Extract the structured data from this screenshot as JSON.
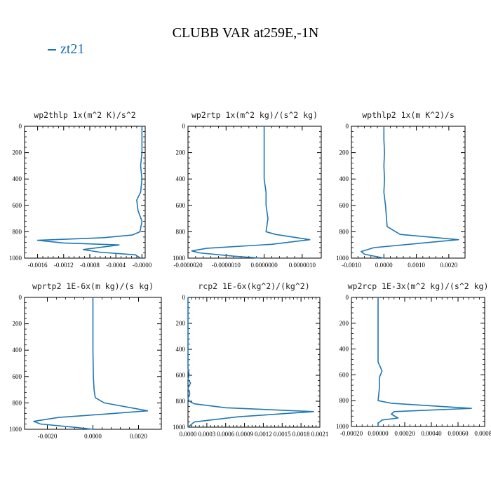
{
  "title": "CLUBB VAR at259E,-1N",
  "legend": {
    "label": "zt21",
    "color": "#1f77b4"
  },
  "chart_data": [
    {
      "type": "line",
      "title": "wp2thlp  1x(m^2 K)/s^2",
      "xlabel": "",
      "ylabel": "",
      "xlim": [
        -0.0018,
        5e-05
      ],
      "ylim": [
        1000,
        0
      ],
      "xticks": [
        -0.0016,
        -0.0012,
        -0.0008,
        -0.0004,
        -0.0
      ],
      "xtick_labels": [
        "-0.0016",
        "-0.0012",
        "-0.0008",
        "-0.0004",
        "-0.0000"
      ],
      "yticks": [
        0,
        200,
        400,
        600,
        800,
        1000
      ],
      "series": [
        {
          "color": "#1f77b4",
          "x": [
            0.0,
            0.0,
            0.0,
            -2e-05,
            0.0,
            -2e-05,
            -8e-05,
            -6e-05,
            0.0,
            -3e-05,
            -0.00015,
            -0.0006,
            -0.0016,
            -0.0012,
            -0.00035,
            -0.0009,
            -0.00065,
            -0.0001,
            -2e-05
          ],
          "y": [
            0,
            100,
            200,
            300,
            400,
            500,
            560,
            640,
            720,
            800,
            825,
            845,
            865,
            885,
            900,
            935,
            955,
            975,
            1000
          ]
        }
      ]
    },
    {
      "type": "line",
      "title": "wp2rtp  1x(m^2 kg)/(s^2 kg)",
      "xlabel": "",
      "ylabel": "",
      "xlim": [
        -2e-06,
        1.5e-06
      ],
      "ylim": [
        1000,
        0
      ],
      "xticks": [
        -2e-06,
        -1e-06,
        0.0,
        1e-06
      ],
      "xtick_labels": [
        "-0.0000020",
        "-0.0000010",
        "0.0000000",
        "0.0000010"
      ],
      "yticks": [
        0,
        200,
        400,
        600,
        800,
        1000
      ],
      "series": [
        {
          "color": "#1f77b4",
          "x": [
            0.0,
            0.0,
            0.0,
            5e-08,
            5e-08,
            1e-07,
            5e-08,
            3e-07,
            1.2e-06,
            2e-07,
            -1.5e-06,
            -1.9e-06,
            -1.7e-06,
            -8e-07,
            -1e-07
          ],
          "y": [
            0,
            200,
            400,
            500,
            600,
            700,
            800,
            820,
            860,
            895,
            925,
            945,
            960,
            985,
            1000
          ]
        }
      ]
    },
    {
      "type": "line",
      "title": "wpthlp2  1x(m K^2)/s",
      "xlabel": "",
      "ylabel": "",
      "xlim": [
        -0.001,
        0.0025
      ],
      "ylim": [
        1000,
        0
      ],
      "xticks": [
        -0.001,
        0.0,
        0.001,
        0.002
      ],
      "xtick_labels": [
        "-0.0010",
        "0.0000",
        "0.0010",
        "0.0020"
      ],
      "yticks": [
        0,
        200,
        400,
        600,
        800,
        1000
      ],
      "series": [
        {
          "color": "#1f77b4",
          "x": [
            0.0,
            0.0,
            2e-05,
            0.0,
            2e-05,
            0.0,
            5e-05,
            0.0001,
            0.0005,
            0.0023,
            0.001,
            -0.0003,
            -0.0007,
            -0.0006,
            -0.0002,
            0.0
          ],
          "y": [
            0,
            100,
            200,
            300,
            400,
            500,
            600,
            760,
            820,
            860,
            890,
            920,
            950,
            970,
            990,
            1000
          ]
        }
      ]
    },
    {
      "type": "line",
      "title": "wprtp2  1E-6x(m kg)/(s kg)",
      "xlabel": "",
      "ylabel": "",
      "xlim": [
        -0.003,
        0.003
      ],
      "ylim": [
        1000,
        0
      ],
      "xticks": [
        -0.002,
        0.0,
        0.002
      ],
      "xtick_labels": [
        "-0.0020",
        "0.0000",
        "0.0020"
      ],
      "yticks": [
        0,
        200,
        400,
        600,
        800,
        1000
      ],
      "series": [
        {
          "color": "#1f77b4",
          "x": [
            0.0,
            0.0,
            0.0,
            2e-05,
            5e-05,
            0.0001,
            0.0005,
            0.0024,
            0.0005,
            -0.0015,
            -0.0026,
            -0.0023,
            -0.0008,
            0.0
          ],
          "y": [
            0,
            200,
            400,
            600,
            700,
            760,
            800,
            860,
            885,
            910,
            940,
            960,
            985,
            1000
          ]
        }
      ]
    },
    {
      "type": "line",
      "title": "rcp2  1E-6x(kg^2)/(kg^2)",
      "xlabel": "",
      "ylabel": "",
      "xlim": [
        0.0,
        0.0021
      ],
      "ylim": [
        1000,
        0
      ],
      "xticks": [
        0.0,
        0.0003,
        0.0006,
        0.0009,
        0.0012,
        0.0015,
        0.0018,
        0.0021
      ],
      "xtick_labels": [
        "0.0000",
        "0.0003",
        "0.0006",
        "0.0009",
        "0.0012",
        "0.0015",
        "0.0018",
        "0.0021"
      ],
      "yticks": [
        0,
        200,
        400,
        600,
        800,
        1000
      ],
      "series": [
        {
          "color": "#1f77b4",
          "x": [
            0.0,
            0.0,
            2e-05,
            0.0,
            4e-05,
            0.0,
            3e-05,
            0.0,
            2e-05,
            0.0001,
            0.0006,
            0.002,
            0.0008,
            0.0001,
            0.0
          ],
          "y": [
            0,
            550,
            600,
            630,
            660,
            700,
            740,
            780,
            800,
            820,
            850,
            880,
            920,
            960,
            1000
          ]
        }
      ]
    },
    {
      "type": "line",
      "title": "wp2rcp  1E-3x(m^2 kg)/(s^2 kg)",
      "xlabel": "",
      "ylabel": "",
      "xlim": [
        -0.0002,
        0.0008
      ],
      "ylim": [
        1000,
        0
      ],
      "xticks": [
        -0.0002,
        0.0,
        0.0002,
        0.0004,
        0.0006,
        0.0008
      ],
      "xtick_labels": [
        "-0.00020",
        "0.00000",
        "0.00020",
        "0.00040",
        "0.00060",
        "0.00080"
      ],
      "yticks": [
        0,
        200,
        400,
        600,
        800,
        1000
      ],
      "series": [
        {
          "color": "#1f77b4",
          "x": [
            0.0,
            0.0,
            0.0,
            3e-05,
            1e-05,
            1e-05,
            0.0,
            0.0001,
            0.0004,
            0.0007,
            0.00012,
            0.0001,
            0.00015,
            3e-05,
            0.0,
            0.0
          ],
          "y": [
            0,
            200,
            500,
            570,
            620,
            700,
            800,
            820,
            840,
            860,
            885,
            905,
            935,
            950,
            975,
            1000
          ]
        }
      ]
    }
  ]
}
